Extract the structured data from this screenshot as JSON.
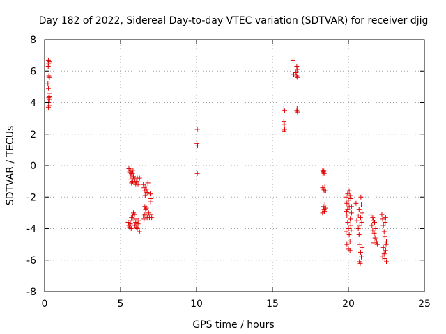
{
  "chart_data": {
    "type": "scatter",
    "title": "Day 182 of 2022, Sidereal Day-to-day VTEC variation (SDTVAR) for receiver djig",
    "xlabel": "GPS time / hours",
    "ylabel": "SDTVAR / TECUs",
    "xlim": [
      0,
      25
    ],
    "ylim": [
      -8,
      8
    ],
    "xticks": [
      "0",
      "5",
      "10",
      "15",
      "20",
      "25"
    ],
    "yticks": [
      "-8",
      "-6",
      "-4",
      "-2",
      "0",
      "2",
      "4",
      "6",
      "8"
    ],
    "grid": true,
    "marker": "+",
    "color": "#e00000",
    "series": [
      {
        "name": "SDTVAR",
        "points": [
          [
            0.25,
            6.7
          ],
          [
            0.27,
            6.5
          ],
          [
            0.24,
            6.3
          ],
          [
            0.3,
            6.6
          ],
          [
            0.28,
            5.7
          ],
          [
            0.32,
            5.6
          ],
          [
            0.22,
            5.2
          ],
          [
            0.25,
            4.9
          ],
          [
            0.3,
            4.6
          ],
          [
            0.27,
            4.3
          ],
          [
            0.33,
            4.2
          ],
          [
            0.26,
            4.0
          ],
          [
            0.3,
            3.8
          ],
          [
            0.25,
            3.7
          ],
          [
            0.29,
            3.6
          ],
          [
            0.31,
            4.4
          ],
          [
            5.55,
            -0.2
          ],
          [
            5.6,
            -0.4
          ],
          [
            5.65,
            -0.6
          ],
          [
            5.7,
            -0.5
          ],
          [
            5.75,
            -0.8
          ],
          [
            5.8,
            -1.0
          ],
          [
            5.85,
            -0.7
          ],
          [
            5.9,
            -1.1
          ],
          [
            5.95,
            -0.9
          ],
          [
            6.0,
            -1.2
          ],
          [
            5.62,
            -0.9
          ],
          [
            5.72,
            -1.1
          ],
          [
            5.82,
            -0.3
          ],
          [
            5.88,
            -0.6
          ],
          [
            6.05,
            -1.0
          ],
          [
            6.1,
            -0.8
          ],
          [
            6.15,
            -1.2
          ],
          [
            6.25,
            -0.8
          ],
          [
            5.68,
            -0.3
          ],
          [
            5.78,
            -0.5
          ],
          [
            5.5,
            -3.6
          ],
          [
            5.55,
            -3.8
          ],
          [
            5.6,
            -3.9
          ],
          [
            5.65,
            -3.7
          ],
          [
            5.7,
            -4.0
          ],
          [
            5.75,
            -3.5
          ],
          [
            5.8,
            -3.2
          ],
          [
            5.85,
            -3.0
          ],
          [
            5.9,
            -3.4
          ],
          [
            5.95,
            -3.8
          ],
          [
            6.0,
            -3.6
          ],
          [
            6.05,
            -3.9
          ],
          [
            6.1,
            -4.0
          ],
          [
            6.15,
            -3.7
          ],
          [
            6.2,
            -3.5
          ],
          [
            6.25,
            -4.2
          ],
          [
            5.72,
            -3.3
          ],
          [
            5.92,
            -3.1
          ],
          [
            6.08,
            -3.4
          ],
          [
            5.62,
            -3.5
          ],
          [
            6.5,
            -1.2
          ],
          [
            6.55,
            -1.4
          ],
          [
            6.6,
            -1.6
          ],
          [
            6.65,
            -1.3
          ],
          [
            6.7,
            -1.5
          ],
          [
            6.75,
            -1.7
          ],
          [
            6.8,
            -1.1
          ],
          [
            6.62,
            -1.9
          ],
          [
            6.95,
            -1.8
          ],
          [
            7.0,
            -2.1
          ],
          [
            6.98,
            -2.3
          ],
          [
            6.5,
            -3.2
          ],
          [
            6.55,
            -3.4
          ],
          [
            6.6,
            -3.1
          ],
          [
            6.65,
            -2.8
          ],
          [
            6.7,
            -2.7
          ],
          [
            6.75,
            -3.3
          ],
          [
            6.8,
            -3.2
          ],
          [
            6.85,
            -3.0
          ],
          [
            6.9,
            -3.3
          ],
          [
            7.0,
            -3.1
          ],
          [
            7.05,
            -3.3
          ],
          [
            6.6,
            -2.6
          ],
          [
            10.05,
            2.3
          ],
          [
            10.03,
            1.4
          ],
          [
            10.07,
            1.3
          ],
          [
            10.05,
            -0.5
          ],
          [
            15.75,
            3.6
          ],
          [
            15.8,
            3.5
          ],
          [
            15.75,
            2.8
          ],
          [
            15.78,
            2.6
          ],
          [
            15.8,
            2.3
          ],
          [
            15.76,
            2.2
          ],
          [
            16.35,
            6.7
          ],
          [
            16.6,
            6.3
          ],
          [
            16.62,
            6.1
          ],
          [
            16.55,
            5.9
          ],
          [
            16.4,
            5.8
          ],
          [
            16.6,
            5.7
          ],
          [
            16.65,
            5.6
          ],
          [
            16.62,
            3.6
          ],
          [
            16.65,
            3.4
          ],
          [
            16.6,
            3.5
          ],
          [
            18.3,
            -0.3
          ],
          [
            18.35,
            -0.4
          ],
          [
            18.4,
            -0.5
          ],
          [
            18.32,
            -0.6
          ],
          [
            18.38,
            -0.35
          ],
          [
            18.3,
            -1.4
          ],
          [
            18.35,
            -1.5
          ],
          [
            18.4,
            -1.6
          ],
          [
            18.45,
            -1.3
          ],
          [
            18.5,
            -1.6
          ],
          [
            18.35,
            -2.6
          ],
          [
            18.4,
            -2.8
          ],
          [
            18.45,
            -2.5
          ],
          [
            18.5,
            -2.7
          ],
          [
            18.3,
            -3.0
          ],
          [
            18.42,
            -2.9
          ],
          [
            19.85,
            -2.0
          ],
          [
            19.9,
            -2.4
          ],
          [
            19.95,
            -2.8
          ],
          [
            20.0,
            -2.2
          ],
          [
            20.05,
            -2.6
          ],
          [
            20.1,
            -1.9
          ],
          [
            20.15,
            -2.1
          ],
          [
            20.2,
            -3.0
          ],
          [
            19.9,
            -3.2
          ],
          [
            19.95,
            -3.6
          ],
          [
            20.0,
            -4.0
          ],
          [
            20.05,
            -4.4
          ],
          [
            20.1,
            -4.8
          ],
          [
            19.85,
            -4.2
          ],
          [
            19.9,
            -5.0
          ],
          [
            20.0,
            -5.3
          ],
          [
            20.1,
            -5.4
          ],
          [
            20.15,
            -3.8
          ],
          [
            20.2,
            -2.6
          ],
          [
            19.95,
            -1.8
          ],
          [
            20.05,
            -1.6
          ],
          [
            20.12,
            -3.4
          ],
          [
            19.88,
            -2.9
          ],
          [
            20.18,
            -4.1
          ],
          [
            20.5,
            -2.4
          ],
          [
            20.55,
            -3.5
          ],
          [
            20.65,
            -3.2
          ],
          [
            20.7,
            -2.8
          ],
          [
            20.75,
            -3.8
          ],
          [
            20.8,
            -3.3
          ],
          [
            20.85,
            -2.5
          ],
          [
            20.9,
            -3.0
          ],
          [
            20.65,
            -4.0
          ],
          [
            20.7,
            -4.4
          ],
          [
            20.75,
            -5.0
          ],
          [
            20.8,
            -5.5
          ],
          [
            20.85,
            -5.8
          ],
          [
            20.9,
            -5.2
          ],
          [
            20.72,
            -6.1
          ],
          [
            20.78,
            -6.2
          ],
          [
            20.82,
            -2.0
          ],
          [
            20.88,
            -3.6
          ],
          [
            21.5,
            -3.2
          ],
          [
            21.55,
            -3.8
          ],
          [
            21.6,
            -4.1
          ],
          [
            21.65,
            -3.5
          ],
          [
            21.7,
            -4.3
          ],
          [
            21.75,
            -4.6
          ],
          [
            21.8,
            -4.0
          ],
          [
            21.85,
            -4.8
          ],
          [
            21.9,
            -5.0
          ],
          [
            21.6,
            -3.3
          ],
          [
            21.72,
            -3.6
          ],
          [
            21.68,
            -4.9
          ],
          [
            22.2,
            -3.1
          ],
          [
            22.25,
            -3.4
          ],
          [
            22.3,
            -3.8
          ],
          [
            22.35,
            -4.2
          ],
          [
            22.4,
            -4.5
          ],
          [
            22.45,
            -3.3
          ],
          [
            22.5,
            -4.8
          ],
          [
            22.3,
            -5.2
          ],
          [
            22.35,
            -5.6
          ],
          [
            22.4,
            -5.9
          ],
          [
            22.45,
            -5.4
          ],
          [
            22.5,
            -6.1
          ],
          [
            22.25,
            -5.8
          ],
          [
            22.42,
            -3.6
          ],
          [
            22.48,
            -5.0
          ]
        ]
      }
    ]
  }
}
